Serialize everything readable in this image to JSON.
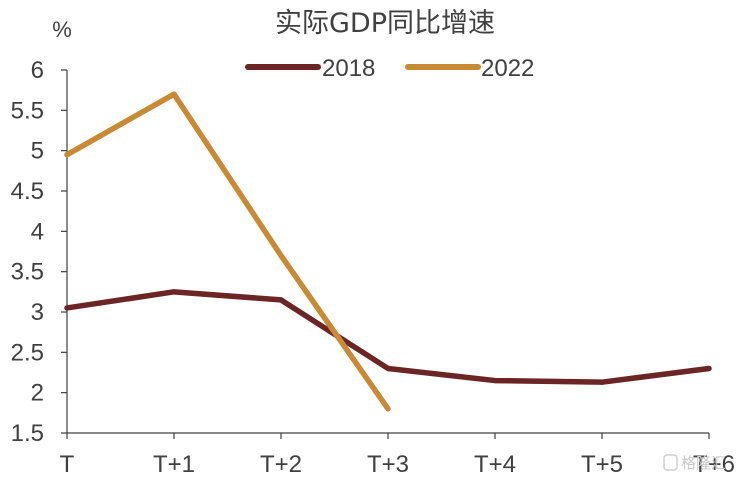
{
  "chart_data": {
    "type": "line",
    "title": "实际GDP同比增速",
    "ylabel": "%",
    "xlabel": "",
    "categories": [
      "T",
      "T+1",
      "T+2",
      "T+3",
      "T+4",
      "T+5",
      "T+6"
    ],
    "y_ticks": [
      "1.5",
      "2",
      "2.5",
      "3",
      "3.5",
      "4",
      "4.5",
      "5",
      "5.5",
      "6"
    ],
    "ylim": [
      1.5,
      6
    ],
    "grid": false,
    "legend_position": "top",
    "series": [
      {
        "name": "2018",
        "color": "#6b2525",
        "values": [
          3.05,
          3.25,
          3.15,
          2.3,
          2.15,
          2.13,
          2.3
        ]
      },
      {
        "name": "2022",
        "color": "#c88a35",
        "values": [
          4.95,
          5.7,
          3.7,
          1.8,
          null,
          null,
          null
        ]
      }
    ]
  },
  "watermark": "格隆汇"
}
